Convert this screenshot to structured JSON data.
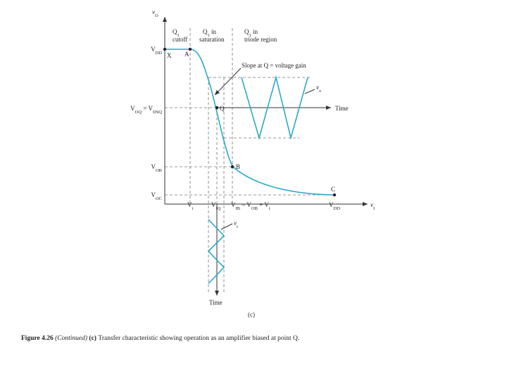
{
  "figure": {
    "y_axis_label": [
      {
        "text": "v",
        "italic": true
      },
      {
        "text": "O",
        "sub": true
      }
    ],
    "x_axis_label": [
      {
        "text": "v",
        "italic": true
      },
      {
        "text": "I",
        "sub": true
      }
    ],
    "regions": [
      {
        "line1": [
          {
            "text": "Q"
          },
          {
            "text": "1",
            "sub": true
          }
        ],
        "line2": [
          {
            "text": "cutoff"
          }
        ]
      },
      {
        "line1": [
          {
            "text": "Q"
          },
          {
            "text": "1",
            "sub": true
          },
          {
            "text": " in"
          }
        ],
        "line2": [
          {
            "text": "saturation"
          }
        ]
      },
      {
        "line1": [
          {
            "text": "Q"
          },
          {
            "text": "1",
            "sub": true
          },
          {
            "text": " in"
          }
        ],
        "line2": [
          {
            "text": "triode region"
          }
        ]
      }
    ],
    "points": {
      "x": "X",
      "a": "A",
      "q": "Q",
      "b": "B",
      "c": "C"
    },
    "slope_note": "Slope at Q = voltage gain",
    "output_signal_label": [
      {
        "text": "v",
        "italic": true
      },
      {
        "text": "o",
        "sub": true
      }
    ],
    "input_signal_label": [
      {
        "text": "v",
        "italic": true
      },
      {
        "text": "i",
        "sub": true
      }
    ],
    "time_right": "Time",
    "time_down": "Time",
    "y_levels": {
      "vdd": [
        {
          "text": "V"
        },
        {
          "text": "DD",
          "sub": true
        }
      ],
      "voq": [
        {
          "text": "V"
        },
        {
          "text": "OQ",
          "sub": true
        },
        {
          "text": " = "
        },
        {
          "text": "V"
        },
        {
          "text": "DSQ",
          "sub": true
        }
      ],
      "vob": [
        {
          "text": "V"
        },
        {
          "text": "OB",
          "sub": true
        }
      ],
      "voc": [
        {
          "text": "V"
        },
        {
          "text": "OC",
          "sub": true
        }
      ]
    },
    "x_levels": {
      "vt": [
        {
          "text": "V"
        },
        {
          "text": "t",
          "sub": true
        }
      ],
      "viq": [
        {
          "text": "V"
        },
        {
          "text": "IQ",
          "sub": true
        }
      ],
      "vib": [
        {
          "text": "V"
        },
        {
          "text": "IB",
          "sub": true
        },
        {
          "text": " = "
        },
        {
          "text": "V"
        },
        {
          "text": "OB",
          "sub": true
        },
        {
          "text": " + "
        },
        {
          "text": "V"
        },
        {
          "text": "t",
          "sub": true
        }
      ],
      "vdd": [
        {
          "text": "V"
        },
        {
          "text": "DD",
          "sub": true
        }
      ]
    },
    "panel_label": "(c)",
    "caption": [
      {
        "text": "Figure 4.26 ",
        "bold": true
      },
      {
        "text": "(Continued) ",
        "italic": true
      },
      {
        "text": "(c) ",
        "bold": true
      },
      {
        "text": "Transfer characteristic showing operation as an amplifier biased at point Q."
      }
    ]
  }
}
